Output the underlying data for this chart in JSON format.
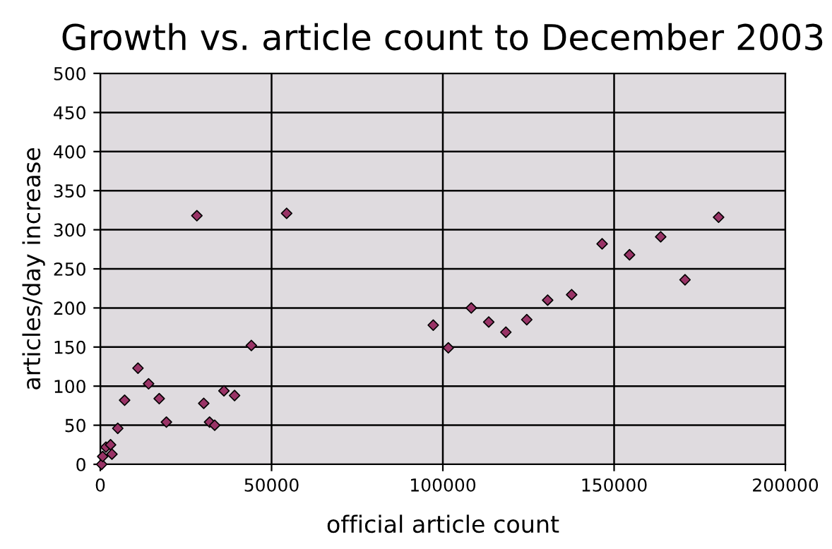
{
  "chart_data": {
    "type": "scatter",
    "title": "Growth vs. article count to December 2003",
    "xlabel": "official article count",
    "ylabel": "articles/day increase",
    "series": [
      {
        "color": "#993366",
        "x": [
          400,
          700,
          1650,
          3000,
          3400,
          5100,
          7100,
          11000,
          14100,
          17200,
          19300,
          28200,
          30200,
          31900,
          33400,
          36100,
          39200,
          44100,
          54400,
          97200,
          101600,
          108300,
          113400,
          118400,
          124500,
          130600,
          137600,
          146500,
          154500,
          163600,
          170700,
          180500
        ],
        "values": [
          0,
          10,
          22,
          25,
          13,
          46,
          82,
          123,
          103,
          84,
          54,
          318,
          78,
          54,
          50,
          94,
          88,
          152,
          321,
          178,
          149,
          200,
          182,
          169,
          185,
          210,
          217,
          282,
          268,
          291,
          236,
          316
        ]
      }
    ],
    "xlim": [
      0,
      200000
    ],
    "xticks": [
      0,
      50000,
      100000,
      150000,
      200000
    ],
    "ylim": [
      0,
      500
    ],
    "yticks": [
      0,
      50,
      100,
      150,
      200,
      250,
      300,
      350,
      400,
      450,
      500
    ],
    "grid": true,
    "marker": "diamond"
  }
}
